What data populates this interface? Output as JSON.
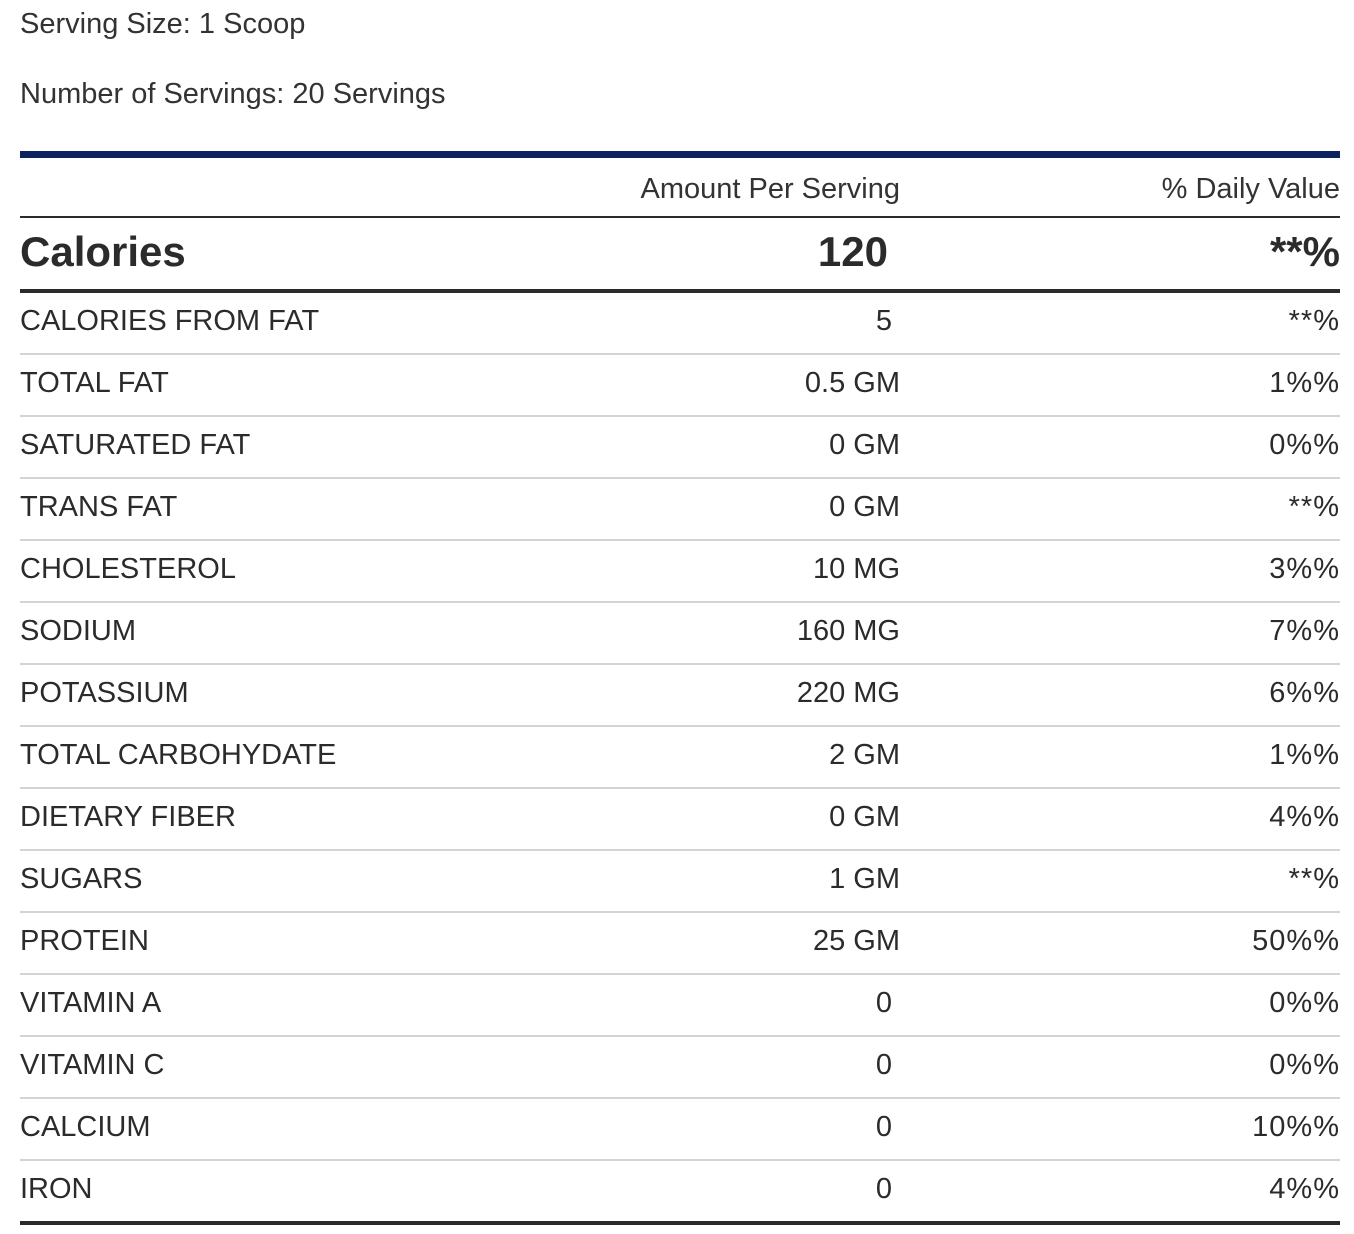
{
  "serving": {
    "size": "Serving Size: 1 Scoop",
    "count": "Number of Servings: 20 Servings"
  },
  "table": {
    "header": {
      "amount": "Amount Per Serving",
      "daily_value": "% Daily Value"
    },
    "calories": {
      "label": "Calories",
      "value": "120",
      "daily_value": "**%"
    },
    "rows": [
      {
        "name": "CALORIES FROM FAT",
        "amount": "5",
        "dv": "**%"
      },
      {
        "name": "TOTAL FAT",
        "amount": "0.5 GM",
        "dv": "1%%"
      },
      {
        "name": "SATURATED FAT",
        "amount": "0 GM",
        "dv": "0%%"
      },
      {
        "name": "TRANS FAT",
        "amount": "0 GM",
        "dv": "**%"
      },
      {
        "name": "CHOLESTEROL",
        "amount": "10 MG",
        "dv": "3%%"
      },
      {
        "name": "SODIUM",
        "amount": "160 MG",
        "dv": "7%%"
      },
      {
        "name": "POTASSIUM",
        "amount": "220 MG",
        "dv": "6%%"
      },
      {
        "name": "TOTAL CARBOHYDATE",
        "amount": "2 GM",
        "dv": "1%%"
      },
      {
        "name": "DIETARY FIBER",
        "amount": "0 GM",
        "dv": "4%%"
      },
      {
        "name": "SUGARS",
        "amount": "1 GM",
        "dv": "**%"
      },
      {
        "name": "PROTEIN",
        "amount": "25 GM",
        "dv": "50%%"
      },
      {
        "name": "VITAMIN A",
        "amount": "0",
        "dv": "0%%"
      },
      {
        "name": "VITAMIN C",
        "amount": "0",
        "dv": "0%%"
      },
      {
        "name": "CALCIUM",
        "amount": "0",
        "dv": "10%%"
      },
      {
        "name": "IRON",
        "amount": "0",
        "dv": "4%%"
      }
    ]
  },
  "colors": {
    "top_rule": "#0c2160",
    "text": "#2b2b2b",
    "row_divider": "#d4d4d4"
  }
}
